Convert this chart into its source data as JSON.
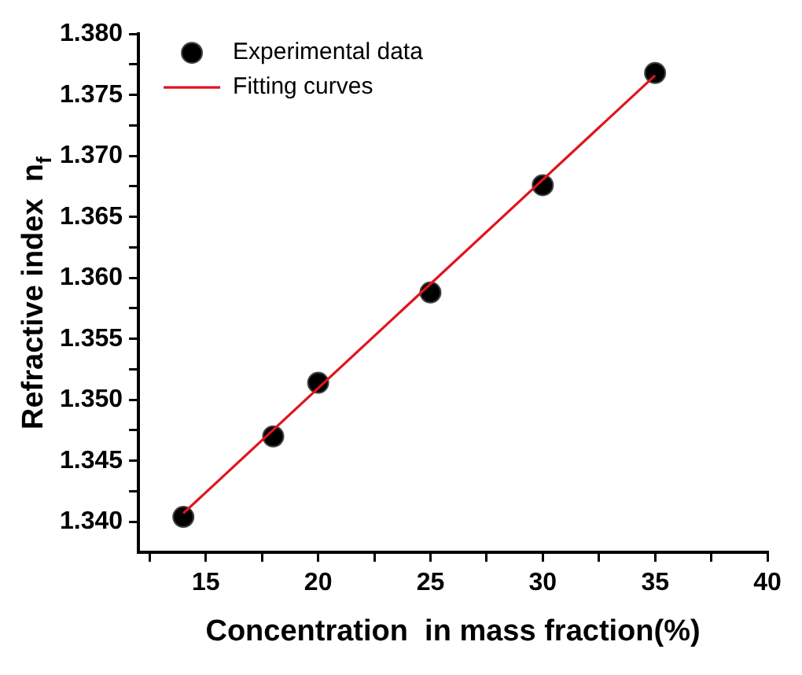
{
  "chart_data": {
    "type": "scatter",
    "xlabel": "Concentration  in mass fraction(%)",
    "ylabel": "Refractive index  n$_{f}$",
    "xlim": [
      12,
      40
    ],
    "xticks": [
      {
        "value": 12.5,
        "label": null
      },
      15,
      {
        "value": 17.5,
        "label": null
      },
      20,
      {
        "value": 22.5,
        "label": null
      },
      25,
      {
        "value": 27.5,
        "label": null
      },
      30,
      {
        "value": 32.5,
        "label": null
      },
      35,
      {
        "value": 37.5,
        "label": null
      },
      40
    ],
    "ylim": [
      1.3375,
      1.38
    ],
    "yticks": [
      {
        "value": 1.34,
        "label": "1.340"
      },
      {
        "value": 1.3425,
        "label": null
      },
      1.345,
      {
        "value": 1.3475,
        "label": null
      },
      {
        "value": 1.35,
        "label": "1.350"
      },
      {
        "value": 1.3525,
        "label": null
      },
      1.355,
      {
        "value": 1.3575,
        "label": null
      },
      {
        "value": 1.36,
        "label": "1.360"
      },
      {
        "value": 1.3625,
        "label": null
      },
      1.365,
      {
        "value": 1.3675,
        "label": null
      },
      {
        "value": 1.37,
        "label": "1.370"
      },
      {
        "value": 1.3725,
        "label": null
      },
      1.375,
      {
        "value": 1.3775,
        "label": null
      },
      {
        "value": 1.38,
        "label": "1.380"
      }
    ],
    "legend": "top left",
    "grid": false,
    "series": [
      {
        "name": "Experimental data",
        "color": "#000000",
        "marker": "circle",
        "x": [
          14,
          18,
          20,
          25,
          30,
          35
        ],
        "values": [
          1.3404,
          1.347,
          1.3514,
          1.3588,
          1.3676,
          1.3768
        ]
      },
      {
        "name": "Fitting curves",
        "type": "line",
        "color": "#e0141e",
        "marker": "none",
        "x": [
          14,
          35
        ],
        "values": [
          1.3407,
          1.3766
        ]
      }
    ]
  }
}
